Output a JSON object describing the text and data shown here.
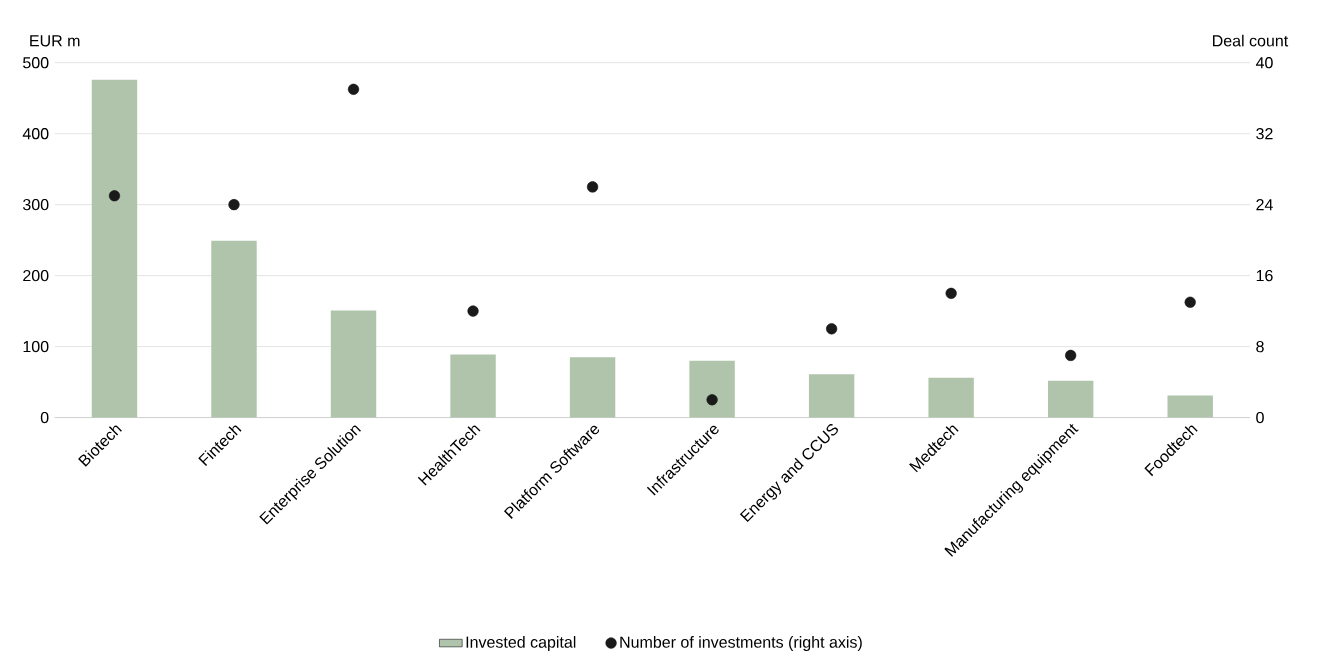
{
  "chart_data": {
    "type": "bar",
    "categories": [
      "Biotech",
      "Fintech",
      "Enterprise Solution",
      "HealthTech",
      "Platform Software",
      "Infrastructure",
      "Energy and CCUS",
      "Medtech",
      "Manufacturing equipment",
      "Foodtech"
    ],
    "series": [
      {
        "name": "Invested capital",
        "color": "#afc4ab",
        "values": [
          476,
          249,
          151,
          89,
          85,
          80,
          61,
          56,
          52,
          31
        ]
      },
      {
        "name": "Number of investments (right axis)",
        "type": "scatter",
        "axis": "y2",
        "color": "#1a1a1a",
        "values": [
          25,
          24,
          37,
          12,
          26,
          2,
          10,
          14,
          7,
          13
        ]
      }
    ],
    "ylabel": "EUR m",
    "y2label": "Deal count",
    "ylim": [
      0,
      500
    ],
    "yticks": [
      0,
      100,
      200,
      300,
      400,
      500
    ],
    "y2lim": [
      0,
      40
    ],
    "y2ticks": [
      0,
      8,
      16,
      24,
      32,
      40
    ],
    "grid": "y",
    "legend": "bottom"
  }
}
